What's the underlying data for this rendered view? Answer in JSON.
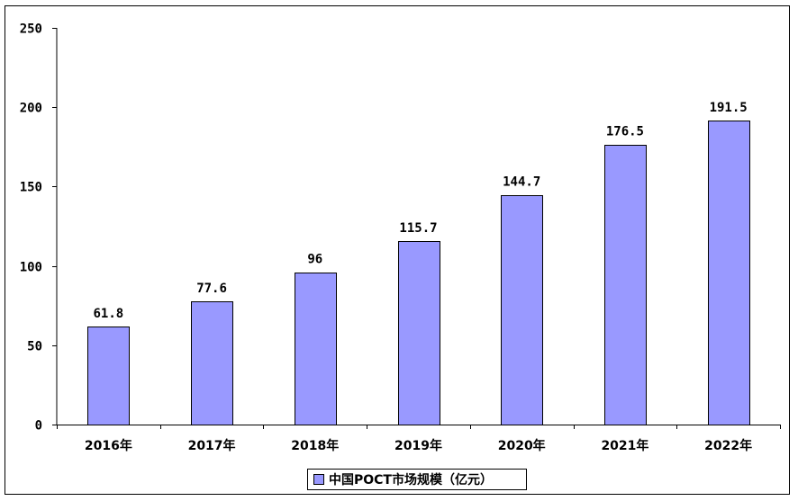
{
  "chart_data": {
    "type": "bar",
    "categories": [
      "2016年",
      "2017年",
      "2018年",
      "2019年",
      "2020年",
      "2021年",
      "2022年"
    ],
    "series": [
      {
        "name": "中国POCT市场规模（亿元）",
        "values": [
          61.8,
          77.6,
          96,
          115.7,
          144.7,
          176.5,
          191.5
        ],
        "labels": [
          "61.8",
          "77.6",
          "96",
          "115.7",
          "144.7",
          "176.5",
          "191.5"
        ]
      }
    ],
    "ylim": [
      0,
      250
    ],
    "yticks": [
      "0",
      "50",
      "100",
      "150",
      "200",
      "250"
    ],
    "title": "",
    "xlabel": "",
    "ylabel": "",
    "grid": false,
    "legend_position": "bottom",
    "bar_color": "#9999ff",
    "bar_edge_color": "#000000"
  }
}
